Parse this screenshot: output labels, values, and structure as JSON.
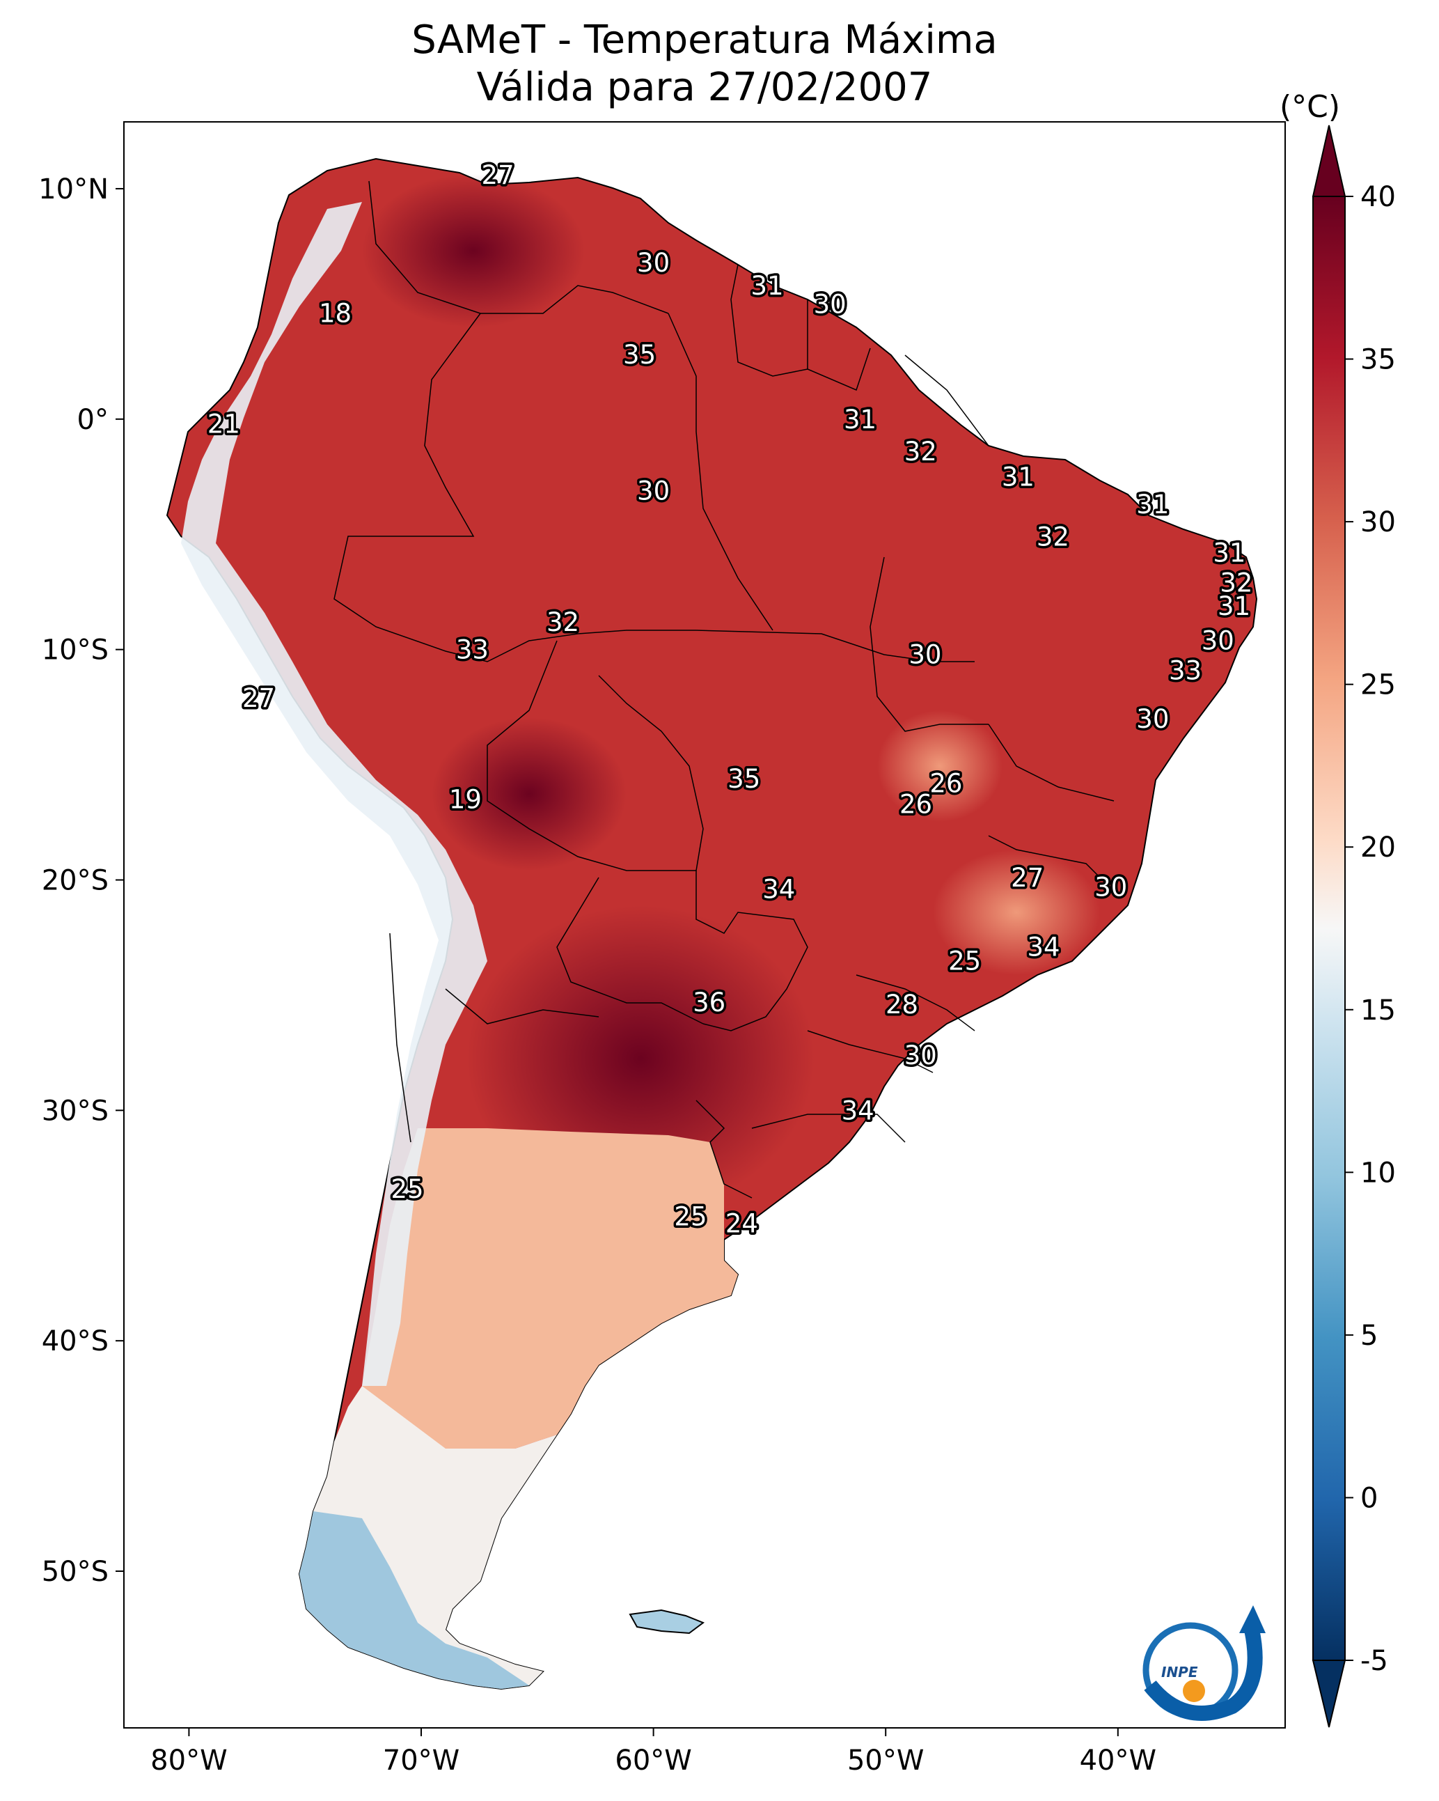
{
  "title": {
    "line1": "SAMeT - Temperatura Máxima",
    "line2": "Válida para 27/02/2007"
  },
  "map": {
    "x_range": [
      -82.8,
      -32.8
    ],
    "y_range": [
      -56.8,
      12.9
    ],
    "lon_ticks": [
      {
        "value": -80,
        "label": "80°W"
      },
      {
        "value": -70,
        "label": "70°W"
      },
      {
        "value": -60,
        "label": "60°W"
      },
      {
        "value": -50,
        "label": "50°W"
      },
      {
        "value": -40,
        "label": "40°W"
      }
    ],
    "lat_ticks": [
      {
        "value": 10,
        "label": "10°N"
      },
      {
        "value": 0,
        "label": "0°"
      },
      {
        "value": -10,
        "label": "10°S"
      },
      {
        "value": -20,
        "label": "20°S"
      },
      {
        "value": -30,
        "label": "30°S"
      },
      {
        "value": -40,
        "label": "40°S"
      },
      {
        "value": -50,
        "label": "50°S"
      }
    ],
    "station_values": [
      {
        "lon": -66.7,
        "lat": 10.6,
        "value": "27"
      },
      {
        "lon": -73.7,
        "lat": 4.6,
        "value": "18"
      },
      {
        "lon": -78.5,
        "lat": -0.2,
        "value": "21"
      },
      {
        "lon": -77.0,
        "lat": -12.1,
        "value": "27"
      },
      {
        "lon": -68.1,
        "lat": -16.5,
        "value": "19"
      },
      {
        "lon": -70.6,
        "lat": -33.4,
        "value": "25"
      },
      {
        "lon": -60.0,
        "lat": 6.8,
        "value": "30"
      },
      {
        "lon": -55.1,
        "lat": 5.8,
        "value": "31"
      },
      {
        "lon": -52.4,
        "lat": 5.0,
        "value": "30"
      },
      {
        "lon": -60.6,
        "lat": 2.8,
        "value": "35"
      },
      {
        "lon": -51.1,
        "lat": 0.0,
        "value": "31"
      },
      {
        "lon": -48.5,
        "lat": -1.4,
        "value": "32"
      },
      {
        "lon": -44.3,
        "lat": -2.5,
        "value": "31"
      },
      {
        "lon": -38.5,
        "lat": -3.7,
        "value": "31"
      },
      {
        "lon": -42.8,
        "lat": -5.1,
        "value": "32"
      },
      {
        "lon": -35.2,
        "lat": -5.8,
        "value": "31"
      },
      {
        "lon": -34.9,
        "lat": -7.1,
        "value": "32"
      },
      {
        "lon": -35.0,
        "lat": -8.1,
        "value": "31"
      },
      {
        "lon": -35.7,
        "lat": -9.6,
        "value": "30"
      },
      {
        "lon": -37.1,
        "lat": -10.9,
        "value": "33"
      },
      {
        "lon": -38.5,
        "lat": -13.0,
        "value": "30"
      },
      {
        "lon": -60.0,
        "lat": -3.1,
        "value": "30"
      },
      {
        "lon": -63.9,
        "lat": -8.8,
        "value": "32"
      },
      {
        "lon": -67.8,
        "lat": -10.0,
        "value": "33"
      },
      {
        "lon": -48.3,
        "lat": -10.2,
        "value": "30"
      },
      {
        "lon": -56.1,
        "lat": -15.6,
        "value": "35"
      },
      {
        "lon": -47.4,
        "lat": -15.8,
        "value": "26"
      },
      {
        "lon": -48.7,
        "lat": -16.7,
        "value": "26"
      },
      {
        "lon": -54.6,
        "lat": -20.4,
        "value": "34"
      },
      {
        "lon": -43.9,
        "lat": -19.9,
        "value": "27"
      },
      {
        "lon": -40.3,
        "lat": -20.3,
        "value": "30"
      },
      {
        "lon": -43.2,
        "lat": -22.9,
        "value": "34"
      },
      {
        "lon": -46.6,
        "lat": -23.5,
        "value": "25"
      },
      {
        "lon": -57.6,
        "lat": -25.3,
        "value": "36"
      },
      {
        "lon": -49.3,
        "lat": -25.4,
        "value": "28"
      },
      {
        "lon": -48.5,
        "lat": -27.6,
        "value": "30"
      },
      {
        "lon": -51.2,
        "lat": -30.0,
        "value": "34"
      },
      {
        "lon": -58.4,
        "lat": -34.6,
        "value": "25"
      },
      {
        "lon": -56.2,
        "lat": -34.9,
        "value": "24"
      }
    ]
  },
  "colorbar": {
    "unit": "(°C)",
    "min": -5,
    "max": 40,
    "ticks": [
      {
        "value": 40,
        "label": "40"
      },
      {
        "value": 35,
        "label": "35"
      },
      {
        "value": 30,
        "label": "30"
      },
      {
        "value": 25,
        "label": "25"
      },
      {
        "value": 20,
        "label": "20"
      },
      {
        "value": 15,
        "label": "15"
      },
      {
        "value": 10,
        "label": "10"
      },
      {
        "value": 5,
        "label": "5"
      },
      {
        "value": 0,
        "label": "0"
      },
      {
        "value": -5,
        "label": "-5"
      }
    ],
    "colors": [
      "#053061",
      "#2166ac",
      "#4393c3",
      "#92c5de",
      "#d1e5f0",
      "#f7f7f7",
      "#fddbc7",
      "#f4a582",
      "#d6604d",
      "#b2182b",
      "#67001f"
    ]
  },
  "logo": {
    "text": "INPE"
  }
}
